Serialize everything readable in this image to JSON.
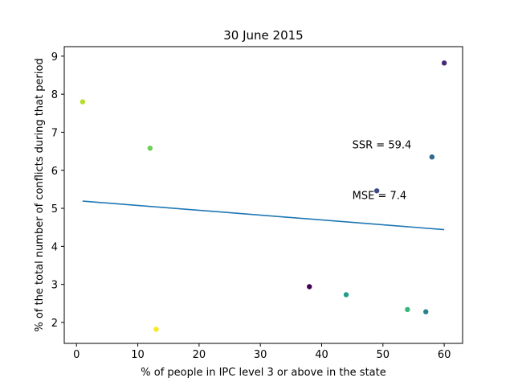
{
  "chart_data": {
    "type": "scatter",
    "title": "30 June 2015",
    "xlabel": "% of people in IPC level 3 or above in the state",
    "ylabel": "% of the total number of conflicts during that period",
    "xlim": [
      -2,
      63
    ],
    "ylim": [
      1.45,
      9.25
    ],
    "x_ticks": [
      0,
      10,
      20,
      30,
      40,
      50,
      60
    ],
    "y_ticks": [
      2,
      3,
      4,
      5,
      6,
      7,
      8,
      9
    ],
    "grid": false,
    "points": [
      {
        "x": 1,
        "y": 7.8,
        "color": "#b5de2b"
      },
      {
        "x": 12,
        "y": 6.58,
        "color": "#6ece58"
      },
      {
        "x": 13,
        "y": 1.82,
        "color": "#fde725"
      },
      {
        "x": 38,
        "y": 2.94,
        "color": "#440154"
      },
      {
        "x": 44,
        "y": 2.73,
        "color": "#1f9e89"
      },
      {
        "x": 49,
        "y": 5.46,
        "color": "#3e4989"
      },
      {
        "x": 54,
        "y": 2.34,
        "color": "#35b779"
      },
      {
        "x": 57,
        "y": 2.28,
        "color": "#26828e"
      },
      {
        "x": 58,
        "y": 6.35,
        "color": "#31688e"
      },
      {
        "x": 60,
        "y": 8.82,
        "color": "#482878"
      }
    ],
    "regression_line": {
      "x": [
        1,
        60
      ],
      "y": [
        5.19,
        4.44
      ],
      "color": "#1f77b4"
    },
    "annotations": [
      {
        "text": "SSR = 59.4",
        "x": 45,
        "y": 6.58
      },
      {
        "text": "MSE = 7.4",
        "x": 45,
        "y": 5.24
      }
    ]
  }
}
